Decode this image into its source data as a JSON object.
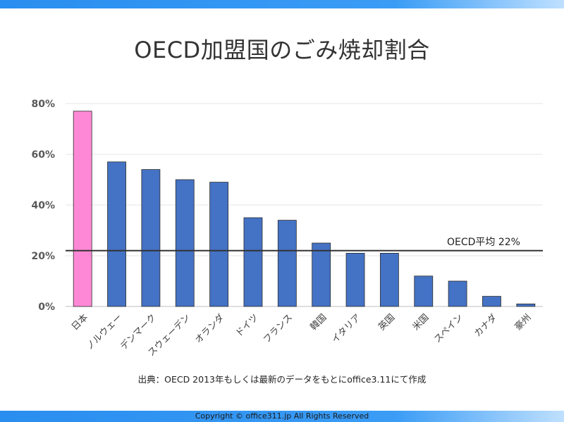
{
  "page": {
    "title": "OECD加盟国のごみ焼却割合",
    "source_note": "出典：OECD 2013年もしくは最新のデータをもとにoffice3.11にて作成",
    "copyright": "Copyright © office311.jp All Rights Reserved"
  },
  "chart_data": {
    "type": "bar",
    "title": "",
    "xlabel": "",
    "ylabel": "",
    "categories": [
      "日本",
      "ノルウェー",
      "デンマーク",
      "スウェーデン",
      "オランダ",
      "ドイツ",
      "フランス",
      "韓国",
      "イタリア",
      "英国",
      "米国",
      "スペイン",
      "カナダ",
      "豪州"
    ],
    "values": [
      77,
      57,
      54,
      50,
      49,
      35,
      34,
      25,
      21,
      21,
      12,
      10,
      4,
      1
    ],
    "value_unit": "%",
    "ylim": [
      0,
      80
    ],
    "yticks": [
      0,
      20,
      40,
      60,
      80
    ],
    "ytick_labels": [
      "0%",
      "20%",
      "40%",
      "60%",
      "80%"
    ],
    "grid": true,
    "highlight_index": 0,
    "colors": {
      "bar": "#4472c4",
      "highlight": "#ff88d6",
      "average_line": "#333333",
      "grid": "#e6e6e6"
    },
    "reference_line": {
      "value": 22,
      "label": "OECD平均 22%"
    }
  }
}
